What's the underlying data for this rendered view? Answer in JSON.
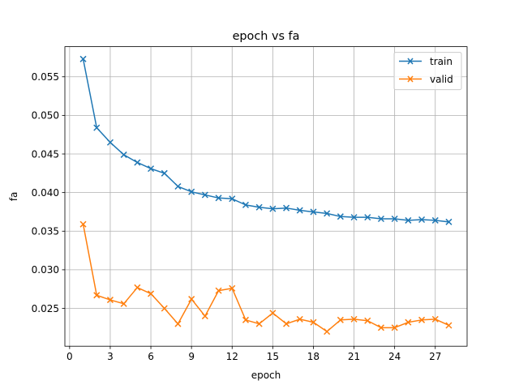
{
  "chart_data": {
    "type": "line",
    "title": "epoch vs fa",
    "xlabel": "epoch",
    "ylabel": "fa",
    "xlim": [
      -0.35,
      29.35
    ],
    "ylim": [
      0.0201,
      0.0589
    ],
    "xticks": [
      0,
      3,
      6,
      9,
      12,
      15,
      18,
      21,
      24,
      27
    ],
    "yticks": [
      0.025,
      0.03,
      0.035,
      0.04,
      0.045,
      0.05,
      0.055
    ],
    "ytick_labels": [
      "0.025",
      "0.030",
      "0.035",
      "0.040",
      "0.045",
      "0.050",
      "0.055"
    ],
    "grid": true,
    "legend_position": "top-right",
    "x": [
      1,
      2,
      3,
      4,
      5,
      6,
      7,
      8,
      9,
      10,
      11,
      12,
      13,
      14,
      15,
      16,
      17,
      18,
      19,
      20,
      21,
      22,
      23,
      24,
      25,
      26,
      27,
      28
    ],
    "series": [
      {
        "name": "train",
        "color": "#1f77b4",
        "marker": "x",
        "values": [
          0.0573,
          0.0484,
          0.0465,
          0.0449,
          0.0439,
          0.0431,
          0.0425,
          0.0408,
          0.0401,
          0.0397,
          0.0393,
          0.0392,
          0.0384,
          0.0381,
          0.0379,
          0.038,
          0.0377,
          0.0375,
          0.0373,
          0.0369,
          0.0368,
          0.0368,
          0.0366,
          0.0366,
          0.0364,
          0.0365,
          0.0364,
          0.0362
        ]
      },
      {
        "name": "valid",
        "color": "#ff7f0e",
        "marker": "x",
        "values": [
          0.0359,
          0.0267,
          0.0261,
          0.0256,
          0.0277,
          0.0269,
          0.025,
          0.023,
          0.0262,
          0.024,
          0.0273,
          0.0276,
          0.0235,
          0.023,
          0.0244,
          0.023,
          0.0236,
          0.0232,
          0.022,
          0.0235,
          0.0236,
          0.0234,
          0.0225,
          0.0225,
          0.0232,
          0.0235,
          0.0236,
          0.0228
        ]
      }
    ]
  }
}
